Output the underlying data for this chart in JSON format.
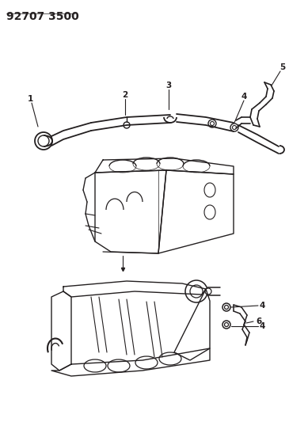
{
  "title": "92707 3500",
  "bg_color": "#ffffff",
  "line_color": "#231f20",
  "fig_width": 3.89,
  "fig_height": 5.33,
  "dpi": 100
}
